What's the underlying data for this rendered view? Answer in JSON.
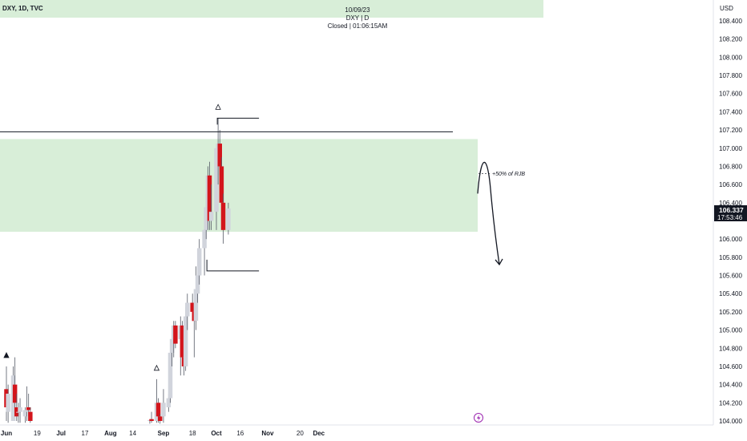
{
  "header": {
    "symbol": "DXY, 1D, TVC",
    "date": "10/09/23",
    "ticker_line": "DXY | D",
    "status_line": "Closed | 01:06:15AM"
  },
  "price_axis": {
    "currency": "USD",
    "ticks": [
      "108.400",
      "108.200",
      "108.000",
      "107.800",
      "107.600",
      "107.400",
      "107.200",
      "107.000",
      "106.800",
      "106.600",
      "106.400",
      "106.000",
      "105.800",
      "105.600",
      "105.400",
      "105.200",
      "105.000",
      "104.800",
      "104.600",
      "104.400",
      "104.200",
      "104.000"
    ],
    "current_price": "106.337",
    "countdown": "17:53:46"
  },
  "time_axis": {
    "ticks": [
      "Jun",
      "19",
      "Jul",
      "17",
      "Aug",
      "14",
      "Sep",
      "18",
      "Oct",
      "16",
      "Nov",
      "20",
      "Dec"
    ]
  },
  "annotations": {
    "rjb_label": "+50% of RJB"
  },
  "colors": {
    "up_candle": "#d1d4dc",
    "down_candle": "#d3151c",
    "zone": "#d8eed8",
    "header_band": "#d8eed8",
    "line": "#131722",
    "badge": "#131722",
    "lightning": "#9c27b0"
  },
  "chart_data": {
    "type": "candlestick",
    "symbol": "DXY",
    "timeframe": "1D",
    "y_range": [
      103.95,
      108.55
    ],
    "x_range": [
      "2023-05-31",
      "2023-12-12"
    ],
    "zone": {
      "from": 106.08,
      "to": 107.1
    },
    "resistance_level": 107.18,
    "projection_range": {
      "high": 107.33,
      "low": 105.65
    },
    "candles": [
      {
        "date": "2023-06-01",
        "o": 104.35,
        "h": 104.6,
        "l": 104.0,
        "c": 104.15
      },
      {
        "date": "2023-06-02",
        "o": 104.1,
        "h": 104.4,
        "l": 103.98,
        "c": 104.3
      },
      {
        "date": "2023-06-05",
        "o": 104.0,
        "h": 104.6,
        "l": 104.0,
        "c": 104.5
      },
      {
        "date": "2023-06-06",
        "o": 104.4,
        "h": 104.7,
        "l": 104.1,
        "c": 104.2
      },
      {
        "date": "2023-06-07",
        "o": 104.15,
        "h": 104.3,
        "l": 104.0,
        "c": 104.05
      },
      {
        "date": "2023-06-08",
        "o": 104.1,
        "h": 104.2,
        "l": 103.98,
        "c": 104.1
      },
      {
        "date": "2023-06-09",
        "o": 104.1,
        "h": 104.25,
        "l": 103.98,
        "c": 104.15
      },
      {
        "date": "2023-06-12",
        "o": 104.05,
        "h": 104.15,
        "l": 103.98,
        "c": 104.12
      },
      {
        "date": "2023-06-13",
        "o": 104.1,
        "h": 104.38,
        "l": 104.0,
        "c": 104.12
      },
      {
        "date": "2023-06-14",
        "o": 104.15,
        "h": 104.3,
        "l": 104.05,
        "c": 104.12
      },
      {
        "date": "2023-06-15",
        "o": 104.1,
        "h": 104.15,
        "l": 103.98,
        "c": 104.0
      },
      {
        "date": "2023-08-24",
        "o": 104.0,
        "h": 104.02,
        "l": 103.97,
        "c": 104.01
      },
      {
        "date": "2023-08-25",
        "o": 104.02,
        "h": 104.1,
        "l": 103.98,
        "c": 104.0
      },
      {
        "date": "2023-08-28",
        "o": 104.0,
        "h": 104.46,
        "l": 103.98,
        "c": 104.2
      },
      {
        "date": "2023-08-29",
        "o": 104.2,
        "h": 104.25,
        "l": 103.98,
        "c": 104.05
      },
      {
        "date": "2023-08-30",
        "o": 104.05,
        "h": 104.08,
        "l": 103.97,
        "c": 104.0
      },
      {
        "date": "2023-09-01",
        "o": 104.05,
        "h": 104.35,
        "l": 103.98,
        "c": 104.2
      },
      {
        "date": "2023-09-04",
        "o": 104.15,
        "h": 104.3,
        "l": 104.1,
        "c": 104.25
      },
      {
        "date": "2023-09-05",
        "o": 104.25,
        "h": 104.9,
        "l": 104.2,
        "c": 104.75
      },
      {
        "date": "2023-09-06",
        "o": 104.75,
        "h": 105.0,
        "l": 104.6,
        "c": 104.9
      },
      {
        "date": "2023-09-07",
        "o": 104.9,
        "h": 105.1,
        "l": 104.7,
        "c": 105.05
      },
      {
        "date": "2023-09-08",
        "o": 105.05,
        "h": 105.1,
        "l": 104.8,
        "c": 104.85
      },
      {
        "date": "2023-09-11",
        "o": 104.9,
        "h": 105.15,
        "l": 104.5,
        "c": 105.05
      },
      {
        "date": "2023-09-12",
        "o": 105.05,
        "h": 105.1,
        "l": 104.6,
        "c": 104.7
      },
      {
        "date": "2023-09-13",
        "o": 104.7,
        "h": 104.9,
        "l": 104.5,
        "c": 104.6
      },
      {
        "date": "2023-09-14",
        "o": 104.6,
        "h": 105.25,
        "l": 104.55,
        "c": 105.15
      },
      {
        "date": "2023-09-15",
        "o": 105.15,
        "h": 105.4,
        "l": 105.0,
        "c": 105.3
      },
      {
        "date": "2023-09-18",
        "o": 105.3,
        "h": 105.4,
        "l": 105.1,
        "c": 105.2
      },
      {
        "date": "2023-09-19",
        "o": 105.2,
        "h": 105.3,
        "l": 104.7,
        "c": 105.1
      },
      {
        "date": "2023-09-20",
        "o": 105.1,
        "h": 105.7,
        "l": 105.0,
        "c": 105.45
      },
      {
        "date": "2023-09-21",
        "o": 105.4,
        "h": 105.8,
        "l": 105.3,
        "c": 105.6
      },
      {
        "date": "2023-09-22",
        "o": 105.6,
        "h": 106.0,
        "l": 105.5,
        "c": 105.9
      },
      {
        "date": "2023-09-25",
        "o": 105.9,
        "h": 106.2,
        "l": 105.6,
        "c": 106.1
      },
      {
        "date": "2023-09-26",
        "o": 106.1,
        "h": 106.5,
        "l": 106.0,
        "c": 106.35
      },
      {
        "date": "2023-09-27",
        "o": 106.35,
        "h": 106.8,
        "l": 106.1,
        "c": 106.7
      },
      {
        "date": "2023-09-28",
        "o": 106.7,
        "h": 106.85,
        "l": 106.1,
        "c": 106.2
      },
      {
        "date": "2023-09-29",
        "o": 106.2,
        "h": 106.6,
        "l": 106.1,
        "c": 106.3
      },
      {
        "date": "2023-10-02",
        "o": 106.3,
        "h": 107.0,
        "l": 106.1,
        "c": 107.0
      },
      {
        "date": "2023-10-03",
        "o": 106.95,
        "h": 107.33,
        "l": 106.6,
        "c": 107.05
      },
      {
        "date": "2023-10-04",
        "o": 107.05,
        "h": 107.2,
        "l": 106.7,
        "c": 106.8
      },
      {
        "date": "2023-10-05",
        "o": 106.8,
        "h": 106.9,
        "l": 106.2,
        "c": 106.4
      },
      {
        "date": "2023-10-06",
        "o": 106.4,
        "h": 106.5,
        "l": 105.95,
        "c": 106.1
      },
      {
        "date": "2023-10-09",
        "o": 106.1,
        "h": 106.4,
        "l": 106.05,
        "c": 106.337
      }
    ],
    "markers": [
      {
        "date": "2023-06-01",
        "kind": "filled-triangle"
      },
      {
        "date": "2023-08-28",
        "kind": "hollow-triangle"
      },
      {
        "date": "2023-10-03",
        "kind": "hollow-triangle"
      }
    ]
  }
}
